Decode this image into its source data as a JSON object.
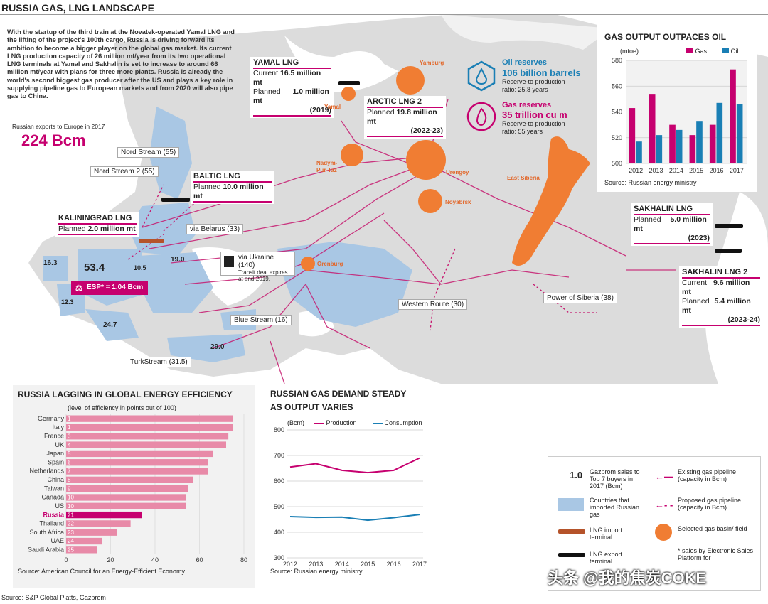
{
  "page": {
    "title": "RUSSIA GAS, LNG LANDSCAPE",
    "source": "Source: S&P Global Platts, Gazprom",
    "watermark": "头条 @我的焦炭COKE"
  },
  "intro": {
    "text": "With the startup of the third train at the Novatek-operated Yamal LNG and the lifting of the project's 100th cargo, Russia is driving forward its ambition to become a bigger player on the global gas market. Its current LNG production capacity of 26 million mt/year from its two operational LNG terminals at Yamal and Sakhalin is set to increase to around 66 million mt/year with plans for three more plants. Russia is already the world's second biggest gas producer after the US and plays a key role in supplying pipeline gas to European markets and from 2020 will also pipe gas to China.",
    "exports_label": "Russian exports to Europe in 2017",
    "exports_value": "224 Bcm"
  },
  "reserves": {
    "oil_label": "Oil reserves",
    "oil_value": "106 billion barrels",
    "oil_ratio": "Reserve-to production ratio: 25.8 years",
    "gas_label": "Gas reserves",
    "gas_value": "35 trillion cu m",
    "gas_ratio": "Reserve-to production ratio: 55 years"
  },
  "lng": {
    "yamal": {
      "title": "YAMAL LNG",
      "r1_label": "Current",
      "r1_value": "16.5 million mt",
      "r2_label": "Planned",
      "r2_value": "1.0 million mt",
      "r2_year": "(2019)"
    },
    "arctic": {
      "title": "ARCTIC LNG 2",
      "r1_label": "Planned",
      "r1_value": "19.8 million mt",
      "r1_year": "(2022-23)"
    },
    "baltic": {
      "title": "BALTIC LNG",
      "r1_label": "Planned",
      "r1_value": "10.0 million mt"
    },
    "kaliningrad": {
      "title": "KALININGRAD LNG",
      "r1_label": "Planned",
      "r1_value": "2.0 million mt"
    },
    "sakhalin": {
      "title": "SAKHALIN LNG",
      "r1_label": "Planned",
      "r1_value": "5.0 million mt",
      "r1_year": "(2023)"
    },
    "sakhalin2": {
      "title": "SAKHALIN LNG 2",
      "r1_label": "Current",
      "r1_value": "9.6 million mt",
      "r2_label": "Planned",
      "r2_value": "5.4 million mt",
      "r2_year": "(2023-24)"
    }
  },
  "map": {
    "pipelines": {
      "nord_stream": "Nord Stream (55)",
      "nord_stream_2": "Nord Stream 2 (55)",
      "via_belarus": "via Belarus (33)",
      "via_ukraine": "via Ukraine (140)",
      "via_ukraine_note": "Transit deal expires at end-2019.",
      "blue_stream": "Blue Stream (16)",
      "turkstream": "TurkStream (31.5)",
      "western_route": "Western Route (30)",
      "power_of_siberia": "Power of Siberia (38)"
    },
    "fields": {
      "yamburg": "Yamburg",
      "yamal": "Yamal",
      "nadym": "Nadym-Pur-Taz",
      "urengoy": "Urengoy",
      "noyabrsk": "Noyabrsk",
      "orenburg": "Orenburg",
      "east_siberia": "East Siberia"
    },
    "country_values": {
      "v163": "16.3",
      "v534": "53.4",
      "v105": "10.5",
      "v190": "19.0",
      "v123": "12.3",
      "v247": "24.7",
      "v290": "29.0"
    },
    "esp_label": "ESP* = 1.04 Bcm"
  },
  "legend": {
    "sales_value": "1.0",
    "sales_text": "Gazprom sales to Top 7 buyers in 2017 (Bcm)",
    "imported_text": "Countries that imported Russian gas",
    "import_terminal": "LNG import terminal",
    "export_terminal": "LNG export terminal",
    "existing_pipeline": "Existing gas pipeline (capacity in Bcm)",
    "proposed_pipeline": "Proposed gas pipeline (capacity in Bcm)",
    "basin": "Selected gas basin/ field",
    "footnote": "* sales by Electronic Sales Platform for"
  },
  "colors": {
    "magenta": "#c6006f",
    "blue": "#1a7fb5",
    "orange": "#f07d33",
    "map_land": "#dcdcdc",
    "imported": "#a9c7e4",
    "pink_bar": "#e88aa8"
  },
  "chart_data": [
    {
      "id": "output",
      "type": "bar",
      "title": "GAS OUTPUT OUTPACES OIL",
      "unit": "(mtoe)",
      "categories": [
        "2012",
        "2013",
        "2014",
        "2015",
        "2016",
        "2017"
      ],
      "series": [
        {
          "name": "Gas",
          "color": "#c6006f",
          "values": [
            543,
            554,
            530,
            522,
            530,
            573
          ]
        },
        {
          "name": "Oil",
          "color": "#1a7fb5",
          "values": [
            517,
            522,
            526,
            533,
            547,
            546
          ]
        }
      ],
      "ylim": [
        500,
        580
      ],
      "yticks": [
        "500",
        "520",
        "540",
        "560",
        "580"
      ],
      "source": "Source: Russian energy ministry"
    },
    {
      "id": "efficiency",
      "type": "bar",
      "orientation": "horizontal",
      "title": "RUSSIA LAGGING IN GLOBAL ENERGY EFFICIENCY",
      "subtitle": "(level of efficiency in points out of 100)",
      "categories": [
        "Germany",
        "Italy",
        "France",
        "UK",
        "Japan",
        "Spain",
        "Netherlands",
        "China",
        "Taiwan",
        "Canada",
        "US",
        "Russia",
        "Thailand",
        "South Africa",
        "UAE",
        "Saudi Arabia"
      ],
      "ranks": [
        "1",
        "1",
        "3",
        "4",
        "5",
        "6",
        "7",
        "8",
        "9",
        "10",
        "10",
        "21",
        "22",
        "23",
        "24",
        "25"
      ],
      "values": [
        75,
        75,
        73,
        72,
        66,
        64,
        64,
        57,
        55,
        54,
        54,
        34,
        29,
        23,
        16,
        14
      ],
      "highlight": "Russia",
      "xlim": [
        0,
        80
      ],
      "xticks": [
        "0",
        "20",
        "40",
        "60",
        "80"
      ],
      "source": "Source: American Council for an Energy-Efficient Economy"
    },
    {
      "id": "demand",
      "type": "line",
      "title": "RUSSIAN GAS DEMAND STEADY AS OUTPUT VARIES",
      "unit": "(Bcm)",
      "x": [
        "2012",
        "2013",
        "2014",
        "2015",
        "2016",
        "2017"
      ],
      "series": [
        {
          "name": "Production",
          "color": "#c6006f",
          "values": [
            655,
            668,
            642,
            633,
            642,
            690
          ]
        },
        {
          "name": "Consumption",
          "color": "#1a7fb5",
          "values": [
            461,
            458,
            459,
            447,
            457,
            469
          ]
        }
      ],
      "ylim": [
        300,
        800
      ],
      "yticks": [
        "300",
        "400",
        "500",
        "600",
        "700",
        "800"
      ],
      "source": "Source: Russian energy ministry"
    }
  ]
}
